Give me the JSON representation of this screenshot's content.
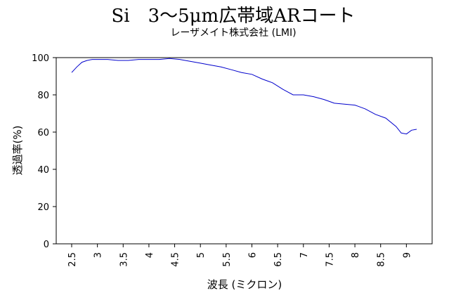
{
  "chart_data": {
    "type": "line",
    "title": "Si　3～5μm広帯域ARコート",
    "subtitle": "レーザメイト株式会社 (LMI)",
    "xlabel": "波長 (ミクロン)",
    "ylabel": "透過率(%)",
    "xlim": [
      2.2,
      9.5
    ],
    "ylim": [
      0,
      100
    ],
    "x_ticks": [
      2.5,
      3,
      3.5,
      4,
      4.5,
      5,
      5.5,
      6,
      6.5,
      7,
      7.5,
      8,
      8.5,
      9
    ],
    "x_tick_labels": [
      "2.5",
      "3",
      "3.5",
      "4",
      "4.5",
      "5",
      "5.5",
      "6",
      "6.5",
      "7",
      "7.5",
      "8",
      "8.5",
      "9"
    ],
    "y_ticks": [
      0,
      20,
      40,
      60,
      80,
      100
    ],
    "y_tick_labels": [
      "0",
      "20",
      "40",
      "60",
      "80",
      "100"
    ],
    "grid": false,
    "legend": "none",
    "line_color": "#0000cc",
    "series": [
      {
        "x": [
          2.5,
          2.6,
          2.7,
          2.8,
          2.9,
          3.0,
          3.2,
          3.4,
          3.6,
          3.8,
          4.0,
          4.2,
          4.4,
          4.6,
          4.8,
          5.0,
          5.2,
          5.4,
          5.6,
          5.8,
          6.0,
          6.2,
          6.4,
          6.6,
          6.8,
          7.0,
          7.2,
          7.4,
          7.6,
          7.8,
          8.0,
          8.2,
          8.4,
          8.6,
          8.8,
          8.9,
          9.0,
          9.1,
          9.2
        ],
        "y": [
          92,
          95,
          97.5,
          98.5,
          99,
          99,
          99,
          98.5,
          98.5,
          99,
          99,
          99,
          99.5,
          99,
          98,
          97,
          96,
          95,
          93.5,
          92,
          91,
          88.5,
          86.5,
          83,
          80,
          80,
          79,
          77.5,
          75.5,
          75,
          74.5,
          72.5,
          69.5,
          67.5,
          63,
          59.5,
          59,
          61,
          61.5
        ]
      }
    ]
  }
}
